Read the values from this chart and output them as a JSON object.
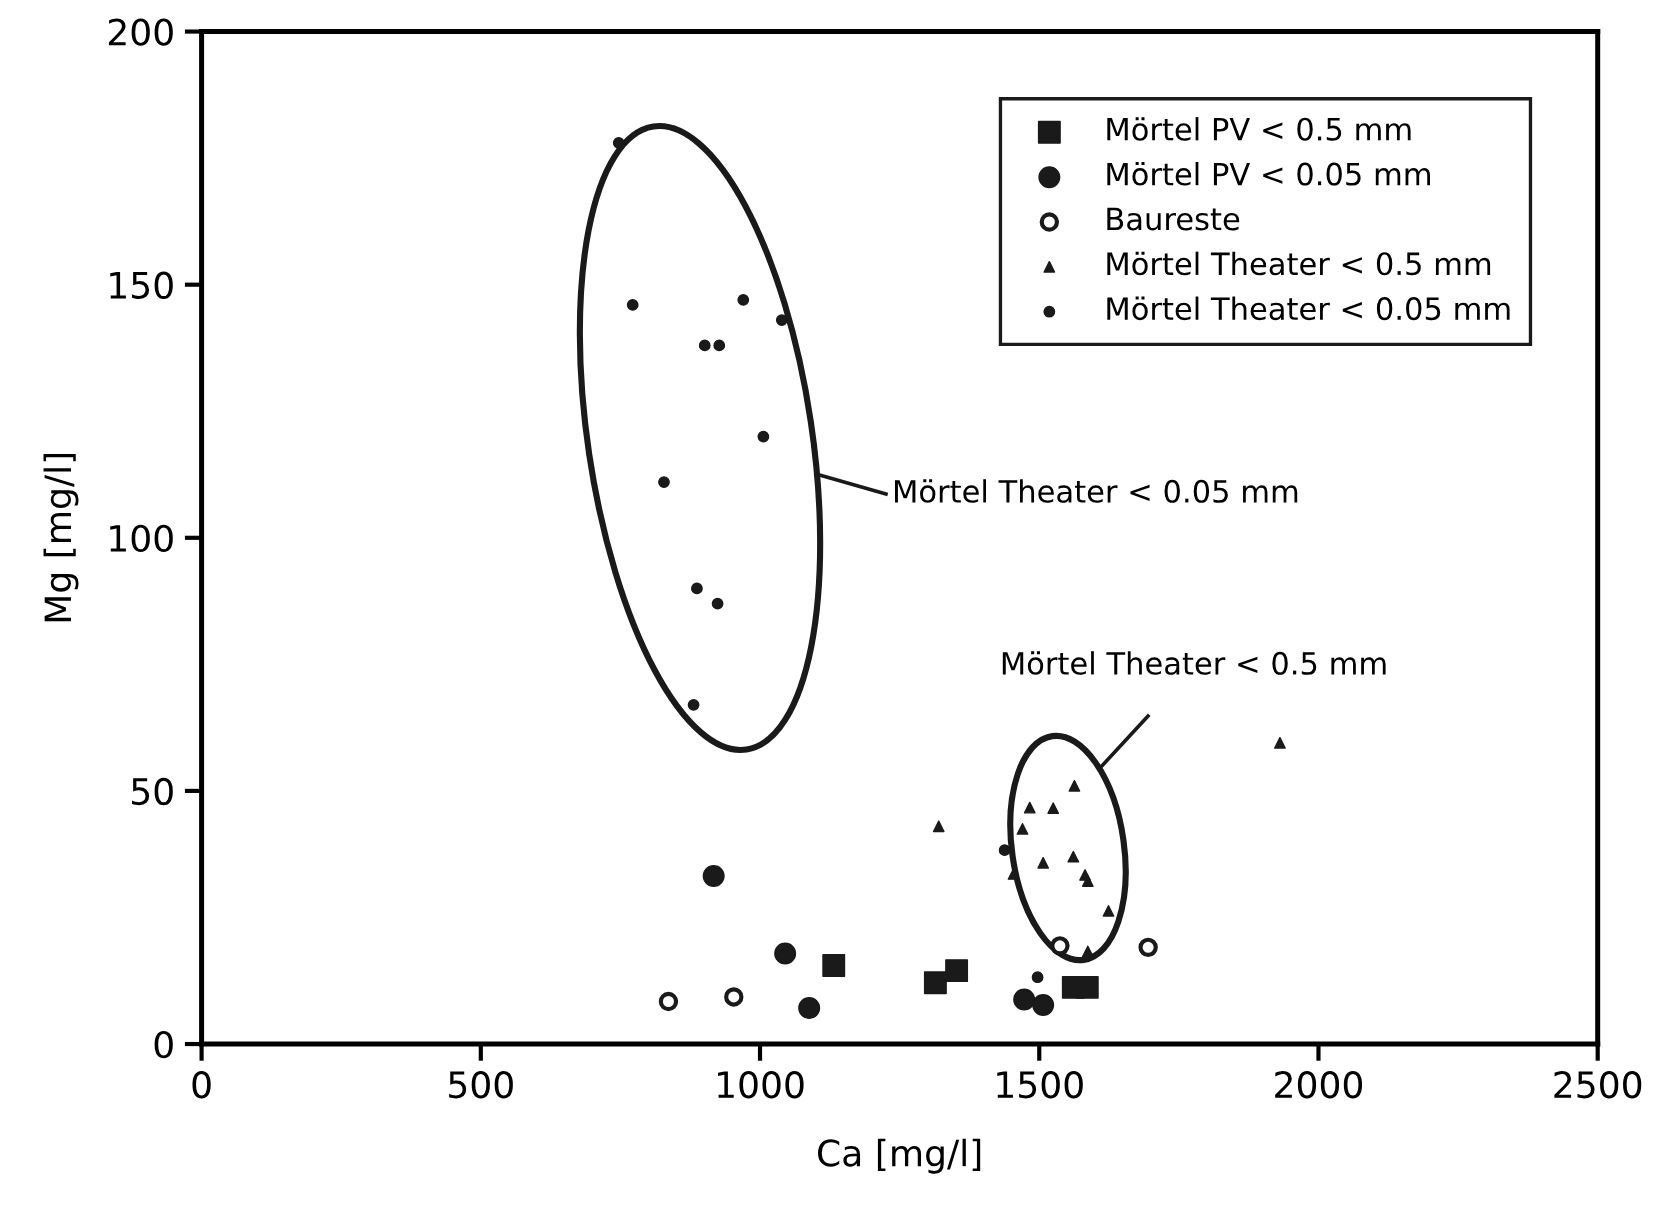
{
  "chart_data": {
    "type": "scatter",
    "xlabel": "Ca [mg/l]",
    "ylabel": "Mg [mg/l]",
    "xlim": [
      0,
      2500
    ],
    "xticks": [
      0,
      500,
      1000,
      1500,
      2000,
      2500
    ],
    "ylim": [
      0,
      200
    ],
    "yticks": [
      0,
      50,
      100,
      150,
      200
    ],
    "grid": false,
    "legend": "top right",
    "annotations": [
      "Mörtel Theater < 0.05 mm",
      "Mörtel Theater < 0.5 mm"
    ],
    "series": [
      {
        "name": "Mörtel PV < 0.5 mm",
        "color": "#1a1a1a",
        "marker": "square",
        "x": [
          1132,
          1314,
          1352,
          1561,
          1586
        ],
        "values": [
          15.5,
          12.1,
          14.5,
          11.2,
          11.2
        ]
      },
      {
        "name": "Mörtel PV < 0.05 mm",
        "color": "#1a1a1a",
        "marker": "circle",
        "x": [
          917,
          1045,
          1088,
          1473,
          1507
        ],
        "values": [
          33.2,
          17.9,
          7.1,
          8.8,
          7.7
        ]
      },
      {
        "name": "Baureste",
        "color": "#ffffff",
        "marker": "circle",
        "x": [
          836,
          953,
          1537,
          1695
        ],
        "values": [
          8.4,
          9.3,
          19.4,
          19.1
        ]
      },
      {
        "name": "Mörtel Theater < 0.5 mm",
        "color": "#1a1a1a",
        "marker": "triangle",
        "x": [
          1320,
          1931,
          1563,
          1483,
          1525,
          1470,
          1507,
          1561,
          1582,
          1587,
          1454,
          1624,
          1587
        ],
        "values": [
          43,
          59.5,
          51,
          46.7,
          46.6,
          42.5,
          35.8,
          37,
          33.4,
          32.2,
          33.6,
          26.3,
          18.3
        ]
      },
      {
        "name": "Mörtel Theater < 0.05 mm",
        "color": "#1a1a1a",
        "marker": "circle",
        "x": [
          747,
          772,
          970,
          1039,
          901,
          927,
          1006,
          828,
          887,
          924,
          881,
          1438,
          1497
        ],
        "values": [
          178,
          146,
          147,
          143,
          138,
          138,
          120,
          111,
          90,
          87,
          67,
          38.3,
          13.2
        ]
      }
    ]
  }
}
